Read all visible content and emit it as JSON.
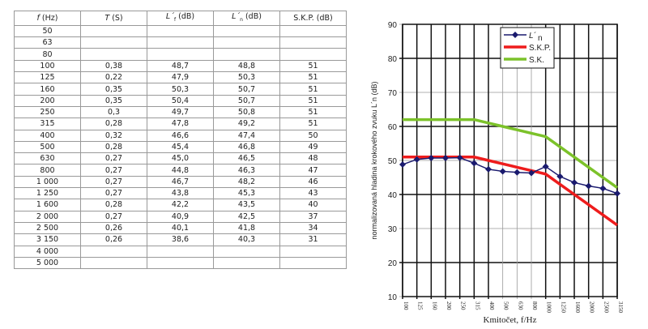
{
  "table": {
    "headers": [
      {
        "main": "f",
        "rest": " (Hz)",
        "sub": ""
      },
      {
        "main": "T",
        "rest": " (S)",
        "sub": ""
      },
      {
        "main": "L´",
        "rest": " (dB)",
        "sub": "f"
      },
      {
        "main": "L´",
        "rest": " (dB)",
        "sub": "n"
      },
      {
        "main": "",
        "rest": "S.K.P. (dB)",
        "sub": ""
      }
    ],
    "rows": [
      [
        "50",
        "",
        "",
        "",
        ""
      ],
      [
        "63",
        "",
        "",
        "",
        ""
      ],
      [
        "80",
        "",
        "",
        "",
        ""
      ],
      [
        "100",
        "0,38",
        "48,7",
        "48,8",
        "51"
      ],
      [
        "125",
        "0,22",
        "47,9",
        "50,3",
        "51"
      ],
      [
        "160",
        "0,35",
        "50,3",
        "50,7",
        "51"
      ],
      [
        "200",
        "0,35",
        "50,4",
        "50,7",
        "51"
      ],
      [
        "250",
        "0,3",
        "49,7",
        "50,8",
        "51"
      ],
      [
        "315",
        "0,28",
        "47,8",
        "49,2",
        "51"
      ],
      [
        "400",
        "0,32",
        "46,6",
        "47,4",
        "50"
      ],
      [
        "500",
        "0,28",
        "45,4",
        "46,8",
        "49"
      ],
      [
        "630",
        "0,27",
        "45,0",
        "46,5",
        "48"
      ],
      [
        "800",
        "0,27",
        "44,8",
        "46,3",
        "47"
      ],
      [
        "1 000",
        "0,27",
        "46,7",
        "48,2",
        "46"
      ],
      [
        "1 250",
        "0,27",
        "43,8",
        "45,3",
        "43"
      ],
      [
        "1 600",
        "0,28",
        "42,2",
        "43,5",
        "40"
      ],
      [
        "2 000",
        "0,27",
        "40,9",
        "42,5",
        "37"
      ],
      [
        "2 500",
        "0,26",
        "40,1",
        "41,8",
        "34"
      ],
      [
        "3 150",
        "0,26",
        "38,6",
        "40,3",
        "31"
      ],
      [
        "4 000",
        "",
        "",
        "",
        ""
      ],
      [
        "5 000",
        "",
        "",
        "",
        ""
      ]
    ]
  },
  "chart_data": {
    "type": "line",
    "xlabel": "Kmitočet, f/Hz",
    "ylabel": "normalizovaná hladina krokového zvuku L´n (dB)",
    "ylim": [
      10,
      90
    ],
    "yticks": [
      10,
      20,
      30,
      40,
      50,
      60,
      70,
      80,
      90
    ],
    "categories": [
      "100",
      "125",
      "160",
      "200",
      "250",
      "315",
      "400",
      "500",
      "630",
      "800",
      "1000",
      "1250",
      "1600",
      "2000",
      "2500",
      "3150"
    ],
    "legend_position": "top-right",
    "grid": true,
    "series": [
      {
        "name": "L´",
        "sub": "n",
        "color": "#1a1a6e",
        "marker": "diamond",
        "values": [
          48.8,
          50.3,
          50.7,
          50.7,
          50.8,
          49.2,
          47.4,
          46.8,
          46.5,
          46.3,
          48.2,
          45.3,
          43.5,
          42.5,
          41.8,
          40.3
        ]
      },
      {
        "name": "S.K.P.",
        "color": "#ee1c1c",
        "values": [
          51,
          51,
          51,
          51,
          51,
          51,
          50,
          49,
          48,
          47,
          46,
          43,
          40,
          37,
          34,
          31
        ]
      },
      {
        "name": "S.K.",
        "color": "#7cc22a",
        "values": [
          62,
          62,
          62,
          62,
          62,
          62,
          61,
          60,
          59,
          58,
          57,
          54,
          51,
          48,
          45,
          42
        ]
      }
    ]
  }
}
